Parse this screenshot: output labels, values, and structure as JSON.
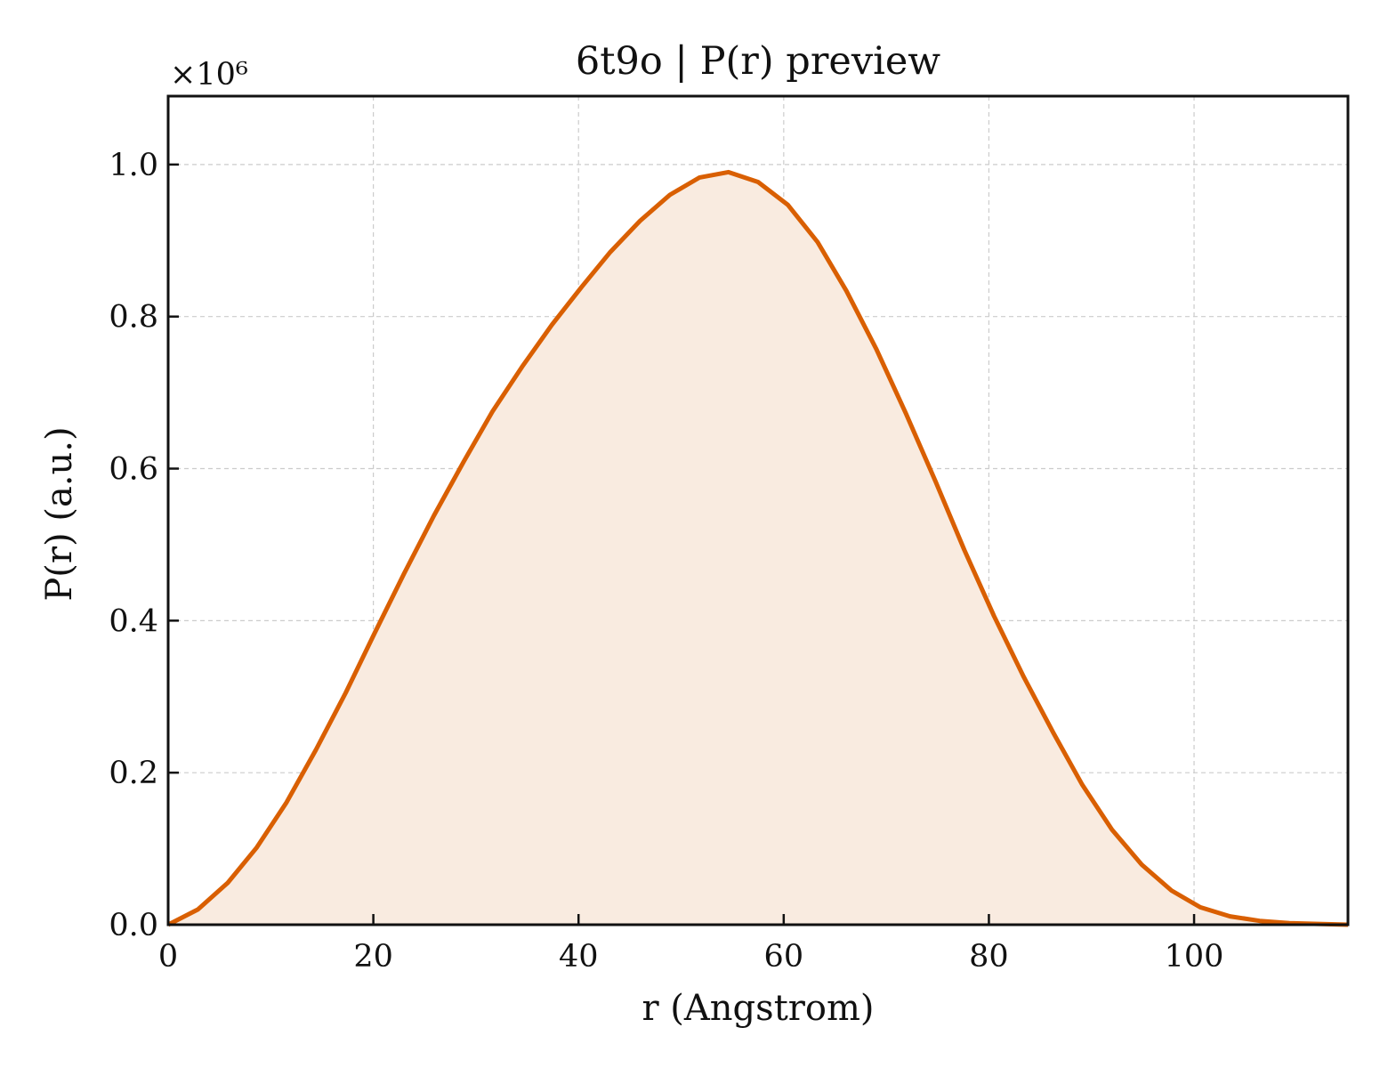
{
  "chart_data": {
    "type": "area",
    "title": "6t9o | P(r) preview",
    "xlabel": "r (Angstrom)",
    "ylabel": "P(r) (a.u.)",
    "y_multiplier_label": "×10⁶",
    "xlim": [
      0,
      115
    ],
    "ylim": [
      0,
      1.09
    ],
    "x_ticks": [
      0,
      20,
      40,
      60,
      80,
      100
    ],
    "x_tick_labels": [
      "0",
      "20",
      "40",
      "60",
      "80",
      "100"
    ],
    "y_ticks": [
      0.0,
      0.2,
      0.4,
      0.6,
      0.8,
      1.0
    ],
    "y_tick_labels": [
      "0.0",
      "0.2",
      "0.4",
      "0.6",
      "0.8",
      "1.0"
    ],
    "grid": true,
    "series": [
      {
        "color": "#d95f02",
        "fill_color": "#f9ebe0",
        "x": [
          0,
          2.9,
          5.8,
          8.6,
          11.5,
          14.4,
          17.3,
          20.1,
          23.0,
          25.9,
          28.8,
          31.6,
          34.5,
          37.4,
          40.3,
          43.1,
          46.0,
          48.9,
          51.8,
          54.6,
          57.5,
          60.4,
          63.3,
          66.1,
          69.0,
          71.9,
          74.8,
          77.6,
          80.5,
          83.4,
          86.3,
          89.1,
          92.0,
          94.9,
          97.8,
          100.6,
          103.5,
          106.4,
          109.3,
          112.1,
          115.0
        ],
        "y": [
          0.0,
          0.02,
          0.055,
          0.101,
          0.16,
          0.23,
          0.305,
          0.383,
          0.462,
          0.538,
          0.609,
          0.675,
          0.734,
          0.789,
          0.839,
          0.885,
          0.926,
          0.96,
          0.983,
          0.99,
          0.977,
          0.947,
          0.898,
          0.834,
          0.758,
          0.673,
          0.583,
          0.493,
          0.406,
          0.326,
          0.252,
          0.184,
          0.125,
          0.079,
          0.045,
          0.023,
          0.011,
          0.005,
          0.002,
          0.001,
          0.0
        ]
      }
    ]
  }
}
